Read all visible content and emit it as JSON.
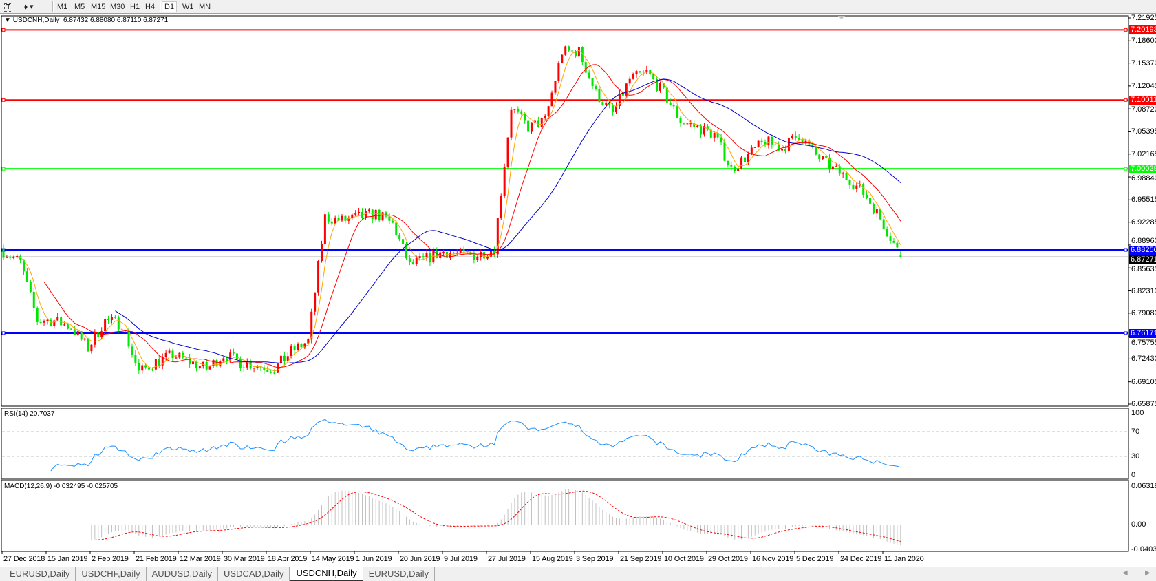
{
  "toolbar": {
    "tools": [
      {
        "icon": "text-tool-icon"
      },
      {
        "icon": "objects-dropdown-icon"
      }
    ],
    "timeframes": [
      "M1",
      "M5",
      "M15",
      "M30",
      "H1",
      "H4",
      "D1",
      "W1",
      "MN"
    ],
    "active_timeframe": "D1"
  },
  "chart": {
    "symbol_label": "USDCNH,Daily",
    "ohlc": "6.87432 6.88080 6.87110 6.87271",
    "last_ohlc": {
      "open": 6.87432,
      "high": 6.8808,
      "low": 6.8711,
      "close": 6.87271
    },
    "colors": {
      "bull": "#ff0000",
      "bear": "#00e600",
      "ma_fast": "#ffa500",
      "ma_mid": "#ff0000",
      "ma_slow": "#0000cd",
      "bid_line": "#c0c0c0"
    },
    "price_axis": [
      "7.21925",
      "7.18600",
      "7.15370",
      "7.12045",
      "7.08720",
      "7.05395",
      "7.02165",
      "6.98840",
      "6.95515",
      "6.92285",
      "6.88960",
      "6.85635",
      "6.82310",
      "6.79080",
      "6.75755",
      "6.72430",
      "6.69105",
      "6.65875"
    ],
    "levels": [
      {
        "value": "7.20193",
        "color": "#ff0000"
      },
      {
        "value": "7.10011",
        "color": "#ff0000"
      },
      {
        "value": "7.00029",
        "color": "#00ff00"
      },
      {
        "value": "6.88250",
        "color": "#0000ff"
      },
      {
        "value": "6.76171",
        "color": "#0000ff"
      }
    ],
    "bid_tag": "6.87271",
    "date_axis": [
      "27 Dec 2018",
      "15 Jan 2019",
      "2 Feb 2019",
      "21 Feb 2019",
      "12 Mar 2019",
      "30 Mar 2019",
      "18 Apr 2019",
      "14 May 2019",
      "1 Jun 2019",
      "20 Jun 2019",
      "9 Jul 2019",
      "27 Jul 2019",
      "15 Aug 2019",
      "3 Sep 2019",
      "21 Sep 2019",
      "10 Oct 2019",
      "29 Oct 2019",
      "16 Nov 2019",
      "5 Dec 2019",
      "24 Dec 2019",
      "11 Jan 2020"
    ],
    "weekly_closes": [
      6.88,
      6.865,
      6.78,
      6.78,
      6.77,
      6.74,
      6.78,
      6.775,
      6.705,
      6.72,
      6.73,
      6.72,
      6.71,
      6.73,
      6.72,
      6.715,
      6.71,
      6.735,
      6.75,
      6.93,
      6.925,
      6.93,
      6.935,
      6.92,
      6.86,
      6.87,
      6.88,
      6.875,
      6.875,
      6.885,
      7.09,
      7.06,
      7.07,
      7.17,
      7.17,
      7.11,
      7.08,
      7.13,
      7.14,
      7.11,
      7.07,
      7.06,
      7.05,
      7.0,
      7.02,
      7.04,
      7.03,
      7.05,
      7.02,
      7.0,
      6.985,
      6.96,
      6.92,
      6.873
    ]
  },
  "rsi": {
    "label": "RSI(14) 20.7037",
    "axis": [
      "100",
      "70",
      "30",
      "0"
    ],
    "levels": [
      70,
      30
    ],
    "color": "#1e90ff"
  },
  "macd": {
    "label": "MACD(12,26,9) -0.032495 -0.025705",
    "axis": [
      "0.063184",
      "0.00",
      "-0.04035"
    ],
    "hist_color": "#c0c0c0",
    "signal_color": "#ff0000"
  },
  "tabs": [
    {
      "label": "EURUSD,Daily",
      "active": false
    },
    {
      "label": "USDCHF,Daily",
      "active": false
    },
    {
      "label": "AUDUSD,Daily",
      "active": false
    },
    {
      "label": "USDCAD,Daily",
      "active": false
    },
    {
      "label": "USDCNH,Daily",
      "active": true
    },
    {
      "label": "EURUSD,Daily",
      "active": false
    }
  ]
}
